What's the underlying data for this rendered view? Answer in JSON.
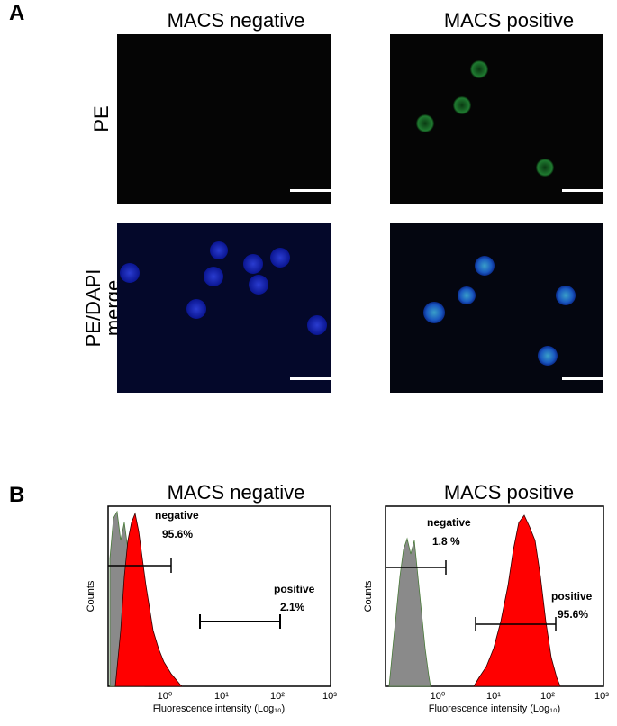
{
  "panel_a": {
    "label": "A",
    "columns": [
      "MACS negative",
      "MACS positive"
    ],
    "rows": [
      [
        "PE"
      ],
      [
        "PE/DAPI",
        "merge"
      ]
    ]
  },
  "panel_b": {
    "label": "B",
    "y_label": "Counts",
    "x_label": "Fluorescence intensity (Log₁₀)",
    "x_ticks": [
      "10⁰",
      "10¹",
      "10²",
      "10³"
    ],
    "plots": [
      {
        "title": "MACS negative",
        "gates": [
          {
            "name": "negative",
            "value": "95.6%"
          },
          {
            "name": "positive",
            "value": "2.1%"
          }
        ]
      },
      {
        "title": "MACS positive",
        "gates": [
          {
            "name": "negative",
            "value": "1.8 %"
          },
          {
            "name": "positive",
            "value": "95.6%"
          }
        ]
      }
    ]
  }
}
